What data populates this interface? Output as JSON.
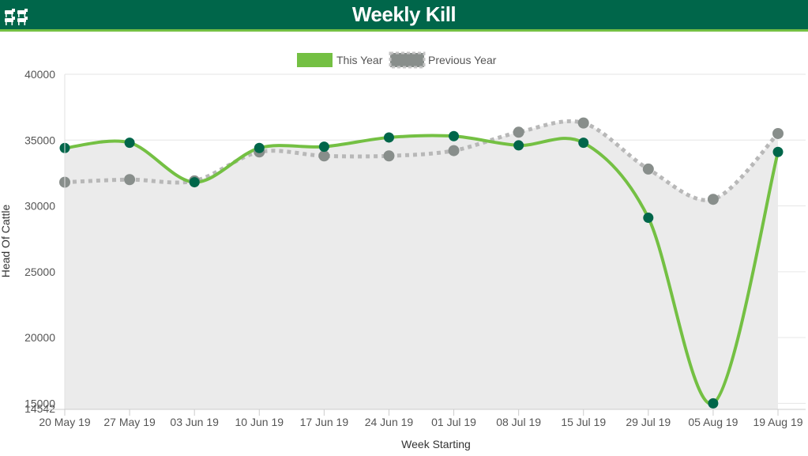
{
  "header": {
    "title": "Weekly Kill",
    "icon": "cattle-icon"
  },
  "colors": {
    "header_bg": "#00664a",
    "accent": "#74c043",
    "this_year_line": "#74c043",
    "this_year_marker": "#00664a",
    "previous_year_line": "#b8b8b8",
    "previous_year_marker": "#888e8b",
    "area": "#ebebeb"
  },
  "chart_data": {
    "type": "line",
    "title": "",
    "xlabel": "Week Starting",
    "ylabel": "Head Of Cattle",
    "categories": [
      "20 May 19",
      "27 May 19",
      "03 Jun 19",
      "10 Jun 19",
      "17 Jun 19",
      "24 Jun 19",
      "01 Jul 19",
      "08 Jul 19",
      "15 Jul 19",
      "29 Jul 19",
      "05 Aug 19",
      "19 Aug 19"
    ],
    "y_ticks": [
      "40000",
      "35000",
      "30000",
      "25000",
      "20000",
      "15000"
    ],
    "y_min_label": "14542",
    "ylim": [
      14542,
      40000
    ],
    "grid": true,
    "legend_position": "top-center",
    "series": [
      {
        "name": "This Year",
        "values": [
          34400,
          34800,
          31800,
          34400,
          34500,
          35200,
          35300,
          34600,
          34800,
          29100,
          15000,
          34100
        ]
      },
      {
        "name": "Previous Year",
        "values": [
          31800,
          32000,
          31900,
          34100,
          33800,
          33800,
          34200,
          35600,
          36300,
          32800,
          30500,
          35500
        ]
      }
    ]
  }
}
